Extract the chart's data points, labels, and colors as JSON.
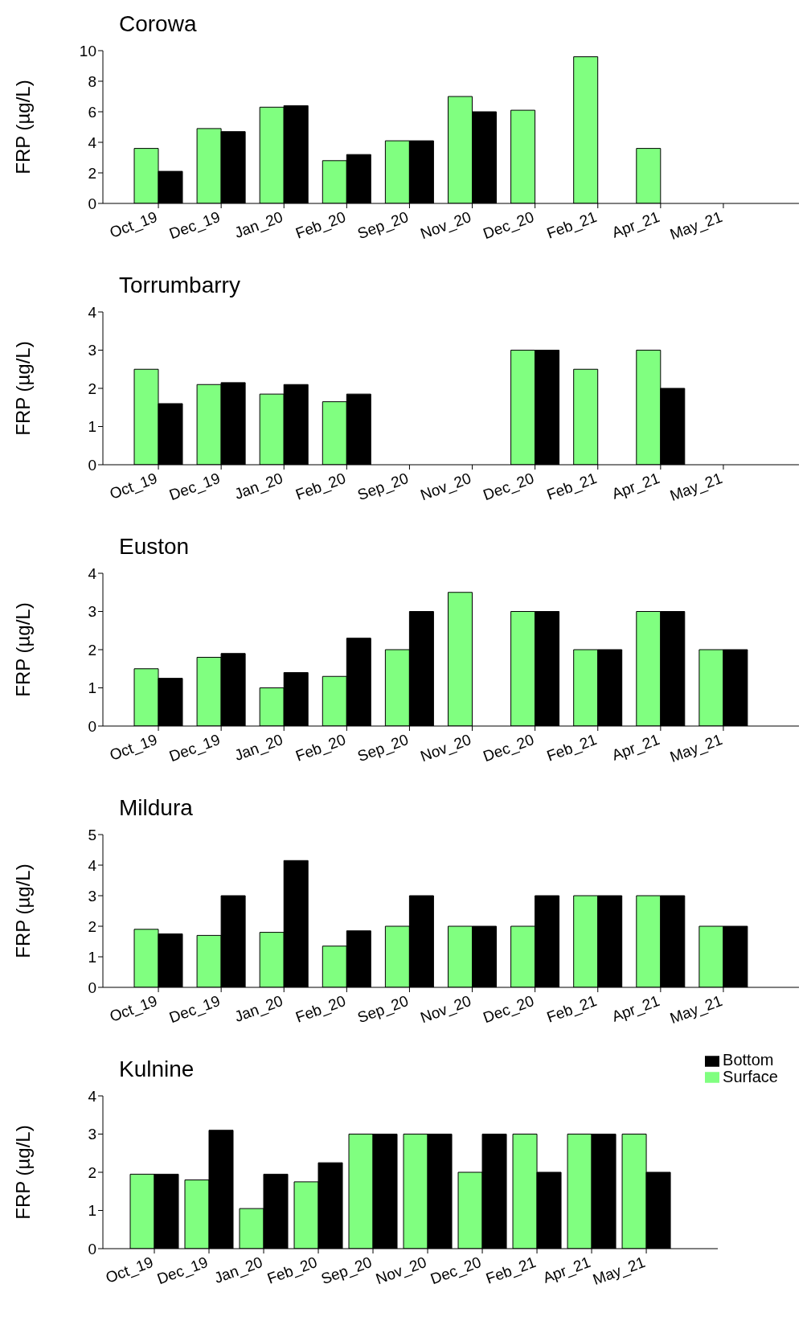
{
  "chart_data": [
    {
      "type": "bar",
      "title": "Corowa",
      "ylabel": "FRP (µg/L)",
      "categories": [
        "Oct_19",
        "Dec_19",
        "Jan_20",
        "Feb_20",
        "Sep_20",
        "Nov_20",
        "Dec_20",
        "Feb_21",
        "Apr_21",
        "May_21"
      ],
      "ylim": [
        0,
        10
      ],
      "yticks": [
        0,
        2,
        4,
        6,
        8,
        10
      ],
      "legend": false,
      "series": [
        {
          "color": "#80ff80",
          "values": [
            3.6,
            4.9,
            6.3,
            2.8,
            4.1,
            7.0,
            6.1,
            9.6,
            3.6,
            null
          ]
        },
        {
          "color": "#000000",
          "values": [
            2.1,
            4.7,
            6.4,
            3.2,
            4.1,
            6.0,
            null,
            null,
            null,
            null
          ]
        }
      ]
    },
    {
      "type": "bar",
      "title": "Torrumbarry",
      "ylabel": "FRP (µg/L)",
      "categories": [
        "Oct_19",
        "Dec_19",
        "Jan_20",
        "Feb_20",
        "Sep_20",
        "Nov_20",
        "Dec_20",
        "Feb_21",
        "Apr_21",
        "May_21"
      ],
      "ylim": [
        0,
        4
      ],
      "yticks": [
        0,
        1,
        2,
        3,
        4
      ],
      "legend": false,
      "series": [
        {
          "color": "#80ff80",
          "values": [
            2.5,
            2.1,
            1.85,
            1.65,
            null,
            null,
            3.0,
            2.5,
            3.0,
            null
          ]
        },
        {
          "color": "#000000",
          "values": [
            1.6,
            2.15,
            2.1,
            1.85,
            null,
            null,
            3.0,
            null,
            2.0,
            null
          ]
        }
      ]
    },
    {
      "type": "bar",
      "title": "Euston",
      "ylabel": "FRP (µg/L)",
      "categories": [
        "Oct_19",
        "Dec_19",
        "Jan_20",
        "Feb_20",
        "Sep_20",
        "Nov_20",
        "Dec_20",
        "Feb_21",
        "Apr_21",
        "May_21"
      ],
      "ylim": [
        0,
        4
      ],
      "yticks": [
        0,
        1,
        2,
        3,
        4
      ],
      "legend": false,
      "series": [
        {
          "color": "#80ff80",
          "values": [
            1.5,
            1.8,
            1.0,
            1.3,
            2.0,
            3.5,
            3.0,
            2.0,
            3.0,
            2.0
          ]
        },
        {
          "color": "#000000",
          "values": [
            1.25,
            1.9,
            1.4,
            2.3,
            3.0,
            null,
            3.0,
            2.0,
            3.0,
            2.0
          ]
        }
      ]
    },
    {
      "type": "bar",
      "title": "Mildura",
      "ylabel": "FRP (µg/L)",
      "categories": [
        "Oct_19",
        "Dec_19",
        "Jan_20",
        "Feb_20",
        "Sep_20",
        "Nov_20",
        "Dec_20",
        "Feb_21",
        "Apr_21",
        "May_21"
      ],
      "ylim": [
        0,
        5
      ],
      "yticks": [
        0,
        1,
        2,
        3,
        4,
        5
      ],
      "legend": false,
      "series": [
        {
          "color": "#80ff80",
          "values": [
            1.9,
            1.7,
            1.8,
            1.35,
            2.0,
            2.0,
            2.0,
            3.0,
            3.0,
            2.0
          ]
        },
        {
          "color": "#000000",
          "values": [
            1.75,
            3.0,
            4.15,
            1.85,
            3.0,
            2.0,
            3.0,
            3.0,
            3.0,
            2.0
          ]
        }
      ]
    },
    {
      "type": "bar",
      "title": "Kulnine",
      "ylabel": "FRP (µg/L)",
      "categories": [
        "Oct_19",
        "Dec_19",
        "Jan_20",
        "Feb_20",
        "Sep_20",
        "Nov_20",
        "Dec_20",
        "Feb_21",
        "Apr_21",
        "May_21"
      ],
      "ylim": [
        0,
        4
      ],
      "yticks": [
        0,
        1,
        2,
        3,
        4
      ],
      "legend": "top right",
      "series": [
        {
          "name": "Surface",
          "color": "#80ff80",
          "values": [
            1.95,
            1.8,
            1.05,
            1.75,
            3.0,
            3.0,
            2.0,
            3.0,
            3.0,
            3.0
          ]
        },
        {
          "name": "Bottom",
          "color": "#000000",
          "values": [
            1.95,
            3.1,
            1.95,
            2.25,
            3.0,
            3.0,
            3.0,
            2.0,
            3.0,
            2.0
          ]
        }
      ]
    }
  ]
}
